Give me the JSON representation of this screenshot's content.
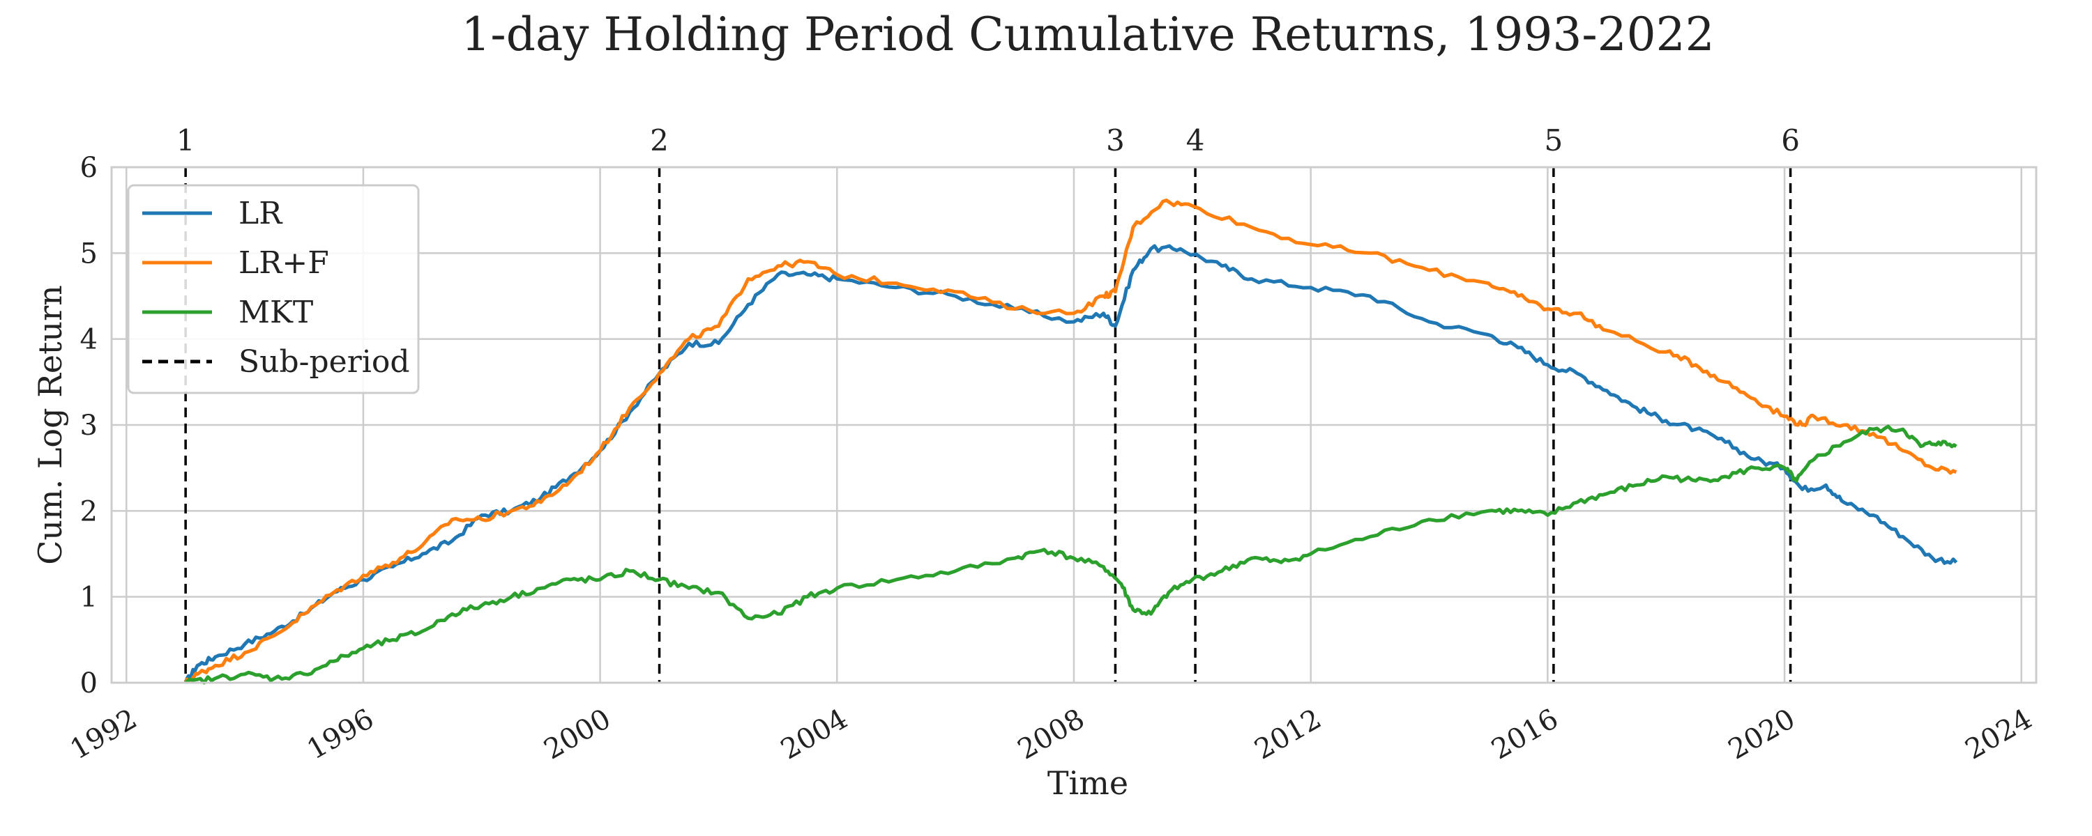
{
  "chart_data": {
    "type": "line",
    "title": "1-day Holding Period Cumulative Returns, 1993-2022",
    "xlabel": "Time",
    "ylabel": "Cum. Log Return",
    "xlim": [
      1991.75,
      2024.25
    ],
    "ylim": [
      0,
      6
    ],
    "x_ticks": [
      "1992",
      "1996",
      "2000",
      "2004",
      "2008",
      "2012",
      "2016",
      "2020",
      "2024"
    ],
    "y_ticks": [
      "0",
      "1",
      "2",
      "3",
      "4",
      "5",
      "6"
    ],
    "grid": true,
    "legend_position": "upper-left",
    "sub_periods": [
      {
        "label": "1",
        "x": 1993.0
      },
      {
        "label": "2",
        "x": 2001.0
      },
      {
        "label": "3",
        "x": 2008.7
      },
      {
        "label": "4",
        "x": 2010.05
      },
      {
        "label": "5",
        "x": 2016.1
      },
      {
        "label": "6",
        "x": 2020.1
      }
    ],
    "sub_period_legend": "Sub-period",
    "series": [
      {
        "name": "LR",
        "color": "#1f77b4",
        "points": [
          [
            1993.0,
            0.0
          ],
          [
            1993.2,
            0.2
          ],
          [
            1993.5,
            0.3
          ],
          [
            1994.0,
            0.45
          ],
          [
            1994.5,
            0.6
          ],
          [
            1995.0,
            0.8
          ],
          [
            1995.5,
            1.05
          ],
          [
            1996.0,
            1.2
          ],
          [
            1996.5,
            1.35
          ],
          [
            1997.0,
            1.5
          ],
          [
            1997.5,
            1.65
          ],
          [
            1998.0,
            1.95
          ],
          [
            1998.5,
            2.0
          ],
          [
            1999.0,
            2.15
          ],
          [
            1999.5,
            2.4
          ],
          [
            2000.0,
            2.7
          ],
          [
            2000.5,
            3.15
          ],
          [
            2001.0,
            3.6
          ],
          [
            2001.5,
            3.95
          ],
          [
            2002.0,
            3.95
          ],
          [
            2002.5,
            4.4
          ],
          [
            2003.0,
            4.75
          ],
          [
            2003.5,
            4.75
          ],
          [
            2004.0,
            4.7
          ],
          [
            2005.0,
            4.6
          ],
          [
            2006.0,
            4.5
          ],
          [
            2007.0,
            4.35
          ],
          [
            2008.0,
            4.2
          ],
          [
            2008.5,
            4.3
          ],
          [
            2008.7,
            4.15
          ],
          [
            2009.0,
            4.8
          ],
          [
            2009.3,
            5.05
          ],
          [
            2009.8,
            5.05
          ],
          [
            2010.5,
            4.85
          ],
          [
            2011.0,
            4.7
          ],
          [
            2012.0,
            4.6
          ],
          [
            2013.0,
            4.5
          ],
          [
            2014.0,
            4.2
          ],
          [
            2015.0,
            4.05
          ],
          [
            2015.5,
            3.9
          ],
          [
            2016.0,
            3.7
          ],
          [
            2016.5,
            3.6
          ],
          [
            2017.0,
            3.4
          ],
          [
            2017.5,
            3.2
          ],
          [
            2018.0,
            3.05
          ],
          [
            2018.5,
            2.95
          ],
          [
            2019.0,
            2.8
          ],
          [
            2019.5,
            2.6
          ],
          [
            2020.0,
            2.5
          ],
          [
            2020.3,
            2.25
          ],
          [
            2020.7,
            2.3
          ],
          [
            2021.0,
            2.1
          ],
          [
            2021.5,
            1.95
          ],
          [
            2022.0,
            1.7
          ],
          [
            2022.5,
            1.45
          ],
          [
            2022.9,
            1.4
          ]
        ]
      },
      {
        "name": "LR+F",
        "color": "#ff7f0e",
        "points": [
          [
            1993.0,
            0.0
          ],
          [
            1993.2,
            0.1
          ],
          [
            1993.5,
            0.2
          ],
          [
            1994.0,
            0.35
          ],
          [
            1994.5,
            0.55
          ],
          [
            1995.0,
            0.8
          ],
          [
            1995.5,
            1.05
          ],
          [
            1996.0,
            1.25
          ],
          [
            1996.5,
            1.4
          ],
          [
            1997.0,
            1.6
          ],
          [
            1997.5,
            1.9
          ],
          [
            1998.0,
            1.9
          ],
          [
            1998.5,
            2.0
          ],
          [
            1999.0,
            2.1
          ],
          [
            1999.5,
            2.35
          ],
          [
            2000.0,
            2.7
          ],
          [
            2000.5,
            3.2
          ],
          [
            2001.0,
            3.6
          ],
          [
            2001.5,
            4.0
          ],
          [
            2002.0,
            4.15
          ],
          [
            2002.5,
            4.7
          ],
          [
            2003.0,
            4.85
          ],
          [
            2003.5,
            4.9
          ],
          [
            2004.0,
            4.75
          ],
          [
            2005.0,
            4.65
          ],
          [
            2006.0,
            4.55
          ],
          [
            2007.0,
            4.35
          ],
          [
            2008.0,
            4.3
          ],
          [
            2008.5,
            4.5
          ],
          [
            2008.7,
            4.55
          ],
          [
            2009.0,
            5.3
          ],
          [
            2009.5,
            5.6
          ],
          [
            2010.0,
            5.55
          ],
          [
            2011.0,
            5.3
          ],
          [
            2012.0,
            5.1
          ],
          [
            2013.0,
            5.0
          ],
          [
            2014.0,
            4.8
          ],
          [
            2015.0,
            4.65
          ],
          [
            2015.5,
            4.5
          ],
          [
            2016.0,
            4.35
          ],
          [
            2016.5,
            4.3
          ],
          [
            2017.0,
            4.1
          ],
          [
            2018.0,
            3.85
          ],
          [
            2018.5,
            3.7
          ],
          [
            2019.0,
            3.5
          ],
          [
            2019.5,
            3.3
          ],
          [
            2020.0,
            3.1
          ],
          [
            2020.3,
            3.0
          ],
          [
            2020.5,
            3.1
          ],
          [
            2021.0,
            3.0
          ],
          [
            2021.5,
            2.9
          ],
          [
            2022.0,
            2.7
          ],
          [
            2022.5,
            2.5
          ],
          [
            2022.9,
            2.45
          ]
        ]
      },
      {
        "name": "MKT",
        "color": "#2ca02c",
        "points": [
          [
            1993.0,
            0.0
          ],
          [
            1993.5,
            0.05
          ],
          [
            1994.0,
            0.1
          ],
          [
            1994.5,
            0.05
          ],
          [
            1995.0,
            0.1
          ],
          [
            1995.5,
            0.25
          ],
          [
            1996.0,
            0.4
          ],
          [
            1996.5,
            0.5
          ],
          [
            1997.0,
            0.6
          ],
          [
            1997.5,
            0.8
          ],
          [
            1998.0,
            0.9
          ],
          [
            1998.5,
            1.0
          ],
          [
            1999.0,
            1.1
          ],
          [
            1999.5,
            1.2
          ],
          [
            2000.0,
            1.2
          ],
          [
            2000.5,
            1.3
          ],
          [
            2001.0,
            1.2
          ],
          [
            2001.5,
            1.1
          ],
          [
            2002.0,
            1.05
          ],
          [
            2002.5,
            0.75
          ],
          [
            2003.0,
            0.8
          ],
          [
            2003.5,
            1.0
          ],
          [
            2004.0,
            1.1
          ],
          [
            2005.0,
            1.2
          ],
          [
            2006.0,
            1.3
          ],
          [
            2007.0,
            1.45
          ],
          [
            2007.5,
            1.55
          ],
          [
            2008.0,
            1.45
          ],
          [
            2008.5,
            1.35
          ],
          [
            2008.8,
            1.15
          ],
          [
            2009.0,
            0.85
          ],
          [
            2009.3,
            0.8
          ],
          [
            2009.6,
            1.05
          ],
          [
            2010.0,
            1.2
          ],
          [
            2010.5,
            1.3
          ],
          [
            2011.0,
            1.45
          ],
          [
            2011.5,
            1.4
          ],
          [
            2012.0,
            1.5
          ],
          [
            2013.0,
            1.7
          ],
          [
            2014.0,
            1.9
          ],
          [
            2015.0,
            2.0
          ],
          [
            2015.5,
            2.0
          ],
          [
            2016.0,
            1.95
          ],
          [
            2016.5,
            2.1
          ],
          [
            2017.0,
            2.2
          ],
          [
            2017.5,
            2.3
          ],
          [
            2018.0,
            2.4
          ],
          [
            2018.5,
            2.35
          ],
          [
            2019.0,
            2.4
          ],
          [
            2019.5,
            2.5
          ],
          [
            2020.0,
            2.5
          ],
          [
            2020.2,
            2.35
          ],
          [
            2020.5,
            2.6
          ],
          [
            2021.0,
            2.8
          ],
          [
            2021.5,
            2.95
          ],
          [
            2022.0,
            2.95
          ],
          [
            2022.3,
            2.75
          ],
          [
            2022.6,
            2.8
          ],
          [
            2022.9,
            2.75
          ]
        ]
      }
    ]
  }
}
